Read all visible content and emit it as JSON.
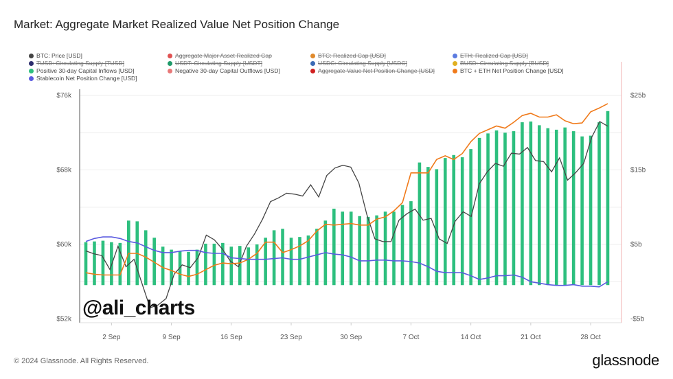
{
  "page": {
    "title": "Market: Aggregate Market Realized Value Net Position Change",
    "footer": "© 2024 Glassnode. All Rights Reserved.",
    "brand": "glassnode",
    "watermark": "@ali_charts"
  },
  "legend": [
    {
      "label": "BTC: Price [USD]",
      "color": "#444444",
      "active": true
    },
    {
      "label": "Aggregate Major Asset Realized Cap",
      "color": "#e05252",
      "active": false
    },
    {
      "label": "BTC: Realized Cap [USD]",
      "color": "#e08a2c",
      "active": false
    },
    {
      "label": "ETH: Realized Cap [USD]",
      "color": "#5b7be0",
      "active": false
    },
    {
      "label": "TUSD: Circulating Supply [TUSD]",
      "color": "#2d2d6e",
      "active": false
    },
    {
      "label": "USDT: Circulating Supply [USDT]",
      "color": "#1f9a6a",
      "active": false
    },
    {
      "label": "USDC: Circulating Supply [USDC]",
      "color": "#3b6bb5",
      "active": false
    },
    {
      "label": "BUSD: Circulating Supply [BUSD]",
      "color": "#e0b020",
      "active": false
    },
    {
      "label": "Positive 30-day Capital Inflows [USD]",
      "color": "#2dbf7e",
      "active": true
    },
    {
      "label": "Negative 30-day Capital Outflows [USD]",
      "color": "#e87878",
      "active": true
    },
    {
      "label": "Aggregate Value Net Position Change [USD]",
      "color": "#d02020",
      "active": false
    },
    {
      "label": "BTC + ETH Net Position Change [USD]",
      "color": "#f07a1a",
      "active": true
    },
    {
      "label": "Stablecoin Net Position Change [USD]",
      "color": "#5b5be0",
      "active": true
    }
  ],
  "chart_data": {
    "type": "bar+line",
    "title": "Market: Aggregate Market Realized Value Net Position Change",
    "x_start": "2024-08-30",
    "x_end": "2024-10-30",
    "x_ticks": [
      "2 Sep",
      "9 Sep",
      "16 Sep",
      "23 Sep",
      "30 Sep",
      "7 Oct",
      "14 Oct",
      "21 Oct",
      "28 Oct"
    ],
    "y_left": {
      "ticks": [
        "$76k",
        "$68k",
        "$60k",
        "$52k"
      ],
      "tick_values": [
        76000,
        68000,
        60000,
        52000
      ],
      "range": [
        52000,
        76000
      ]
    },
    "y_right": {
      "ticks": [
        "$25b",
        "$15b",
        "$5b",
        "-$5b"
      ],
      "tick_values": [
        25,
        15,
        5,
        -5
      ],
      "range": [
        -5,
        25
      ],
      "unit": "billion USD"
    },
    "grid": true,
    "series": [
      {
        "name": "Positive 30-day Capital Inflows [USD]",
        "type": "bar",
        "axis": "right",
        "color": "#2dbf7e",
        "values": [
          5.3,
          5.4,
          5.5,
          5.3,
          5.2,
          8.2,
          8.1,
          6.9,
          5.9,
          4.7,
          4.3,
          4.1,
          4.0,
          4.3,
          5.1,
          5.1,
          5.2,
          4.7,
          4.8,
          4.6,
          5.0,
          5.9,
          6.9,
          7.1,
          5.9,
          6.0,
          6.2,
          7.1,
          8.2,
          9.8,
          9.4,
          9.4,
          8.8,
          8.7,
          8.9,
          9.4,
          9.4,
          10.3,
          10.8,
          16.0,
          15.4,
          15.1,
          16.6,
          17.0,
          16.7,
          17.8,
          19.3,
          19.9,
          20.3,
          20.0,
          20.2,
          21.4,
          21.5,
          21.0,
          20.6,
          20.4,
          20.7,
          20.2,
          19.5,
          19.6,
          21.4,
          22.9
        ]
      },
      {
        "name": "BTC: Price [USD]",
        "type": "line",
        "axis": "left",
        "color": "#444444",
        "values": [
          59300,
          59000,
          58800,
          57300,
          59800,
          57600,
          58400,
          55800,
          53200,
          53500,
          54200,
          56800,
          57800,
          57500,
          58600,
          61000,
          60500,
          59500,
          58200,
          57600,
          59800,
          61100,
          62700,
          64600,
          65000,
          65500,
          65400,
          65200,
          66400,
          65100,
          67400,
          68200,
          68500,
          68300,
          66600,
          63200,
          60600,
          60300,
          60300,
          62600,
          63300,
          63800,
          62600,
          62800,
          60600,
          60100,
          62500,
          63500,
          63000,
          66500,
          67800,
          68700,
          68400,
          69800,
          69700,
          70400,
          69000,
          68900,
          67800,
          69300,
          66900,
          67700,
          68700,
          71500,
          73200,
          72700
        ]
      },
      {
        "name": "BTC + ETH Net Position Change [USD]",
        "type": "line",
        "axis": "right",
        "color": "#f07a1a",
        "values": [
          1.2,
          1.0,
          0.9,
          0.9,
          0.9,
          3.8,
          3.8,
          3.3,
          2.6,
          1.9,
          1.5,
          1.0,
          0.7,
          1.0,
          1.6,
          2.2,
          2.5,
          2.4,
          2.5,
          3.0,
          3.8,
          5.3,
          5.3,
          3.9,
          4.3,
          4.8,
          5.5,
          6.8,
          7.7,
          7.6,
          7.7,
          7.8,
          7.6,
          7.6,
          8.4,
          8.7,
          9.5,
          10.6,
          14.6,
          14.6,
          14.6,
          16.4,
          16.9,
          16.4,
          17.2,
          18.8,
          19.9,
          20.4,
          20.9,
          20.6,
          21.4,
          22.3,
          22.6,
          22.1,
          22.1,
          22.4,
          21.6,
          21.2,
          21.3,
          22.8,
          23.3,
          23.9
        ]
      },
      {
        "name": "Stablecoin Net Position Change [USD]",
        "type": "line",
        "axis": "right",
        "color": "#5b5be0",
        "values": [
          5.4,
          5.8,
          6.0,
          6.0,
          5.8,
          5.4,
          5.2,
          4.7,
          4.2,
          3.9,
          3.9,
          4.1,
          4.2,
          4.2,
          3.9,
          3.8,
          3.8,
          3.2,
          3.1,
          3.0,
          3.0,
          3.0,
          3.1,
          3.2,
          3.0,
          3.0,
          3.3,
          3.6,
          3.9,
          3.7,
          3.6,
          3.3,
          2.8,
          2.8,
          2.9,
          2.9,
          2.8,
          2.8,
          2.7,
          2.5,
          2.0,
          1.4,
          1.2,
          1.2,
          1.2,
          0.8,
          0.3,
          0.5,
          0.8,
          0.8,
          0.9,
          0.6,
          0.0,
          -0.2,
          -0.4,
          -0.5,
          -0.5,
          -0.4,
          -0.6,
          -0.6,
          -0.7,
          0.0
        ]
      }
    ]
  }
}
